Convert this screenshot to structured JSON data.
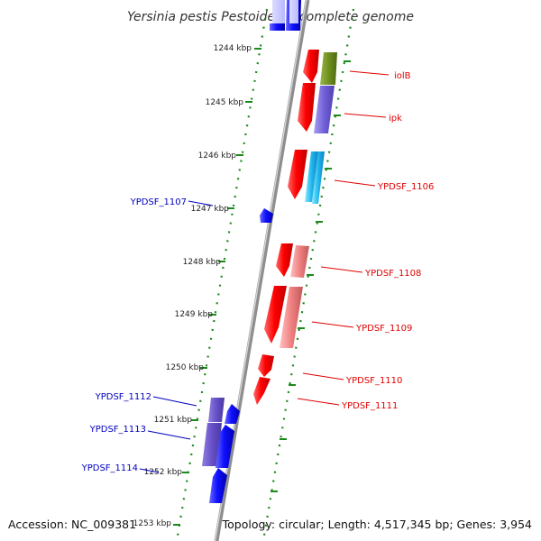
{
  "title": "Yersinia pestis Pestoides F, complete genome",
  "accession": "Accession: NC_009381",
  "summary": "Topology: circular; Length: 4,517,345 bp; Genes: 3,954",
  "colors": {
    "background": "#ffffff",
    "backbone": "#9a9a9a",
    "ruler": "#2a8a2a",
    "forward_gene": "#ff1a1a",
    "reverse_gene": "#1f1fff",
    "forward_label": "#e00000",
    "reverse_label": "#0000c0"
  },
  "ruler_ticks": [
    "1244 kbp",
    "1245 kbp",
    "1246 kbp",
    "1247 kbp",
    "1248 kbp",
    "1249 kbp",
    "1250 kbp",
    "1251 kbp",
    "1252 kbp",
    "1253 kbp"
  ],
  "gene_labels": {
    "forward": [
      "iolB",
      "ipk",
      "YPDSF_1106",
      "YPDSF_1108",
      "YPDSF_1109",
      "YPDSF_1110",
      "YPDSF_1111"
    ],
    "reverse": [
      "YPDSF_1107",
      "YPDSF_1112",
      "YPDSF_1113",
      "YPDSF_1114"
    ]
  }
}
